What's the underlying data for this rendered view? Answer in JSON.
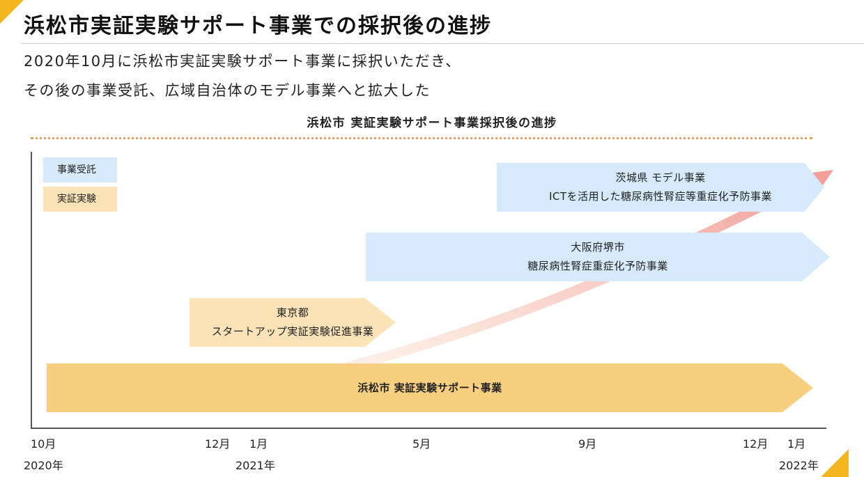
{
  "header": {
    "title": "浜松市実証実験サポート事業での採択後の進捗",
    "intro_line1": "2020年10月に浜松市実証実験サポート事業に採択いただき、",
    "intro_line2": "その後の事業受託、広域自治体のモデル事業へと拡大した"
  },
  "diagram": {
    "title": "浜松市 実証実験サポート事業採択後の進捗",
    "legend": {
      "contract": "事業受託",
      "experiment": "実証実験"
    },
    "bars": {
      "ibaraki": {
        "line1": "茨城県 モデル事業",
        "line2": "ICTを活用した糖尿病性腎症等重症化予防事業"
      },
      "osaka": {
        "line1": "大阪府堺市",
        "line2": "糖尿病性腎症重症化予防事業"
      },
      "tokyo": {
        "line1": "東京都",
        "line2": "スタートアップ実証実験促進事業"
      },
      "hamamatsu": {
        "line1": "浜松市 実証実験サポート事業"
      }
    },
    "axis": {
      "ticks": [
        "10月",
        "12月",
        "1月",
        "5月",
        "9月",
        "12月",
        "1月"
      ],
      "years": [
        "2020年",
        "2021年",
        "2022年"
      ]
    }
  },
  "colors": {
    "accent": "#f3b61f",
    "contract_blue": "#d6eafb",
    "experiment_light": "#fbe3b7",
    "experiment_main": "#f8ce7f",
    "trend_arrow": "#f08a80"
  }
}
